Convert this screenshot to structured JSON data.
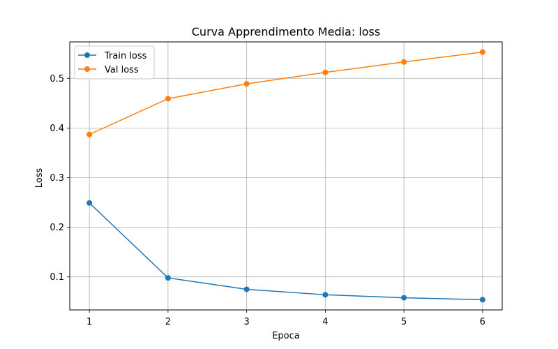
{
  "chart_data": {
    "type": "line",
    "title": "Curva Apprendimento Media: loss",
    "xlabel": "Epoca",
    "ylabel": "Loss",
    "x": [
      1,
      2,
      3,
      4,
      5,
      6
    ],
    "xticks": [
      1,
      2,
      3,
      4,
      5,
      6
    ],
    "yticks": [
      0.1,
      0.2,
      0.3,
      0.4,
      0.5
    ],
    "ytick_labels": [
      "0.1",
      "0.2",
      "0.3",
      "0.4",
      "0.5"
    ],
    "xlim": [
      0.75,
      6.25
    ],
    "ylim": [
      0.0335,
      0.5735
    ],
    "grid": true,
    "legend_position": "upper-left",
    "series": [
      {
        "name": "Train loss",
        "color": "#1f77b4",
        "marker": "circle",
        "values": [
          0.249,
          0.098,
          0.075,
          0.064,
          0.058,
          0.054
        ]
      },
      {
        "name": "Val loss",
        "color": "#ff7f0e",
        "marker": "circle",
        "values": [
          0.387,
          0.459,
          0.489,
          0.512,
          0.533,
          0.553
        ]
      }
    ]
  }
}
